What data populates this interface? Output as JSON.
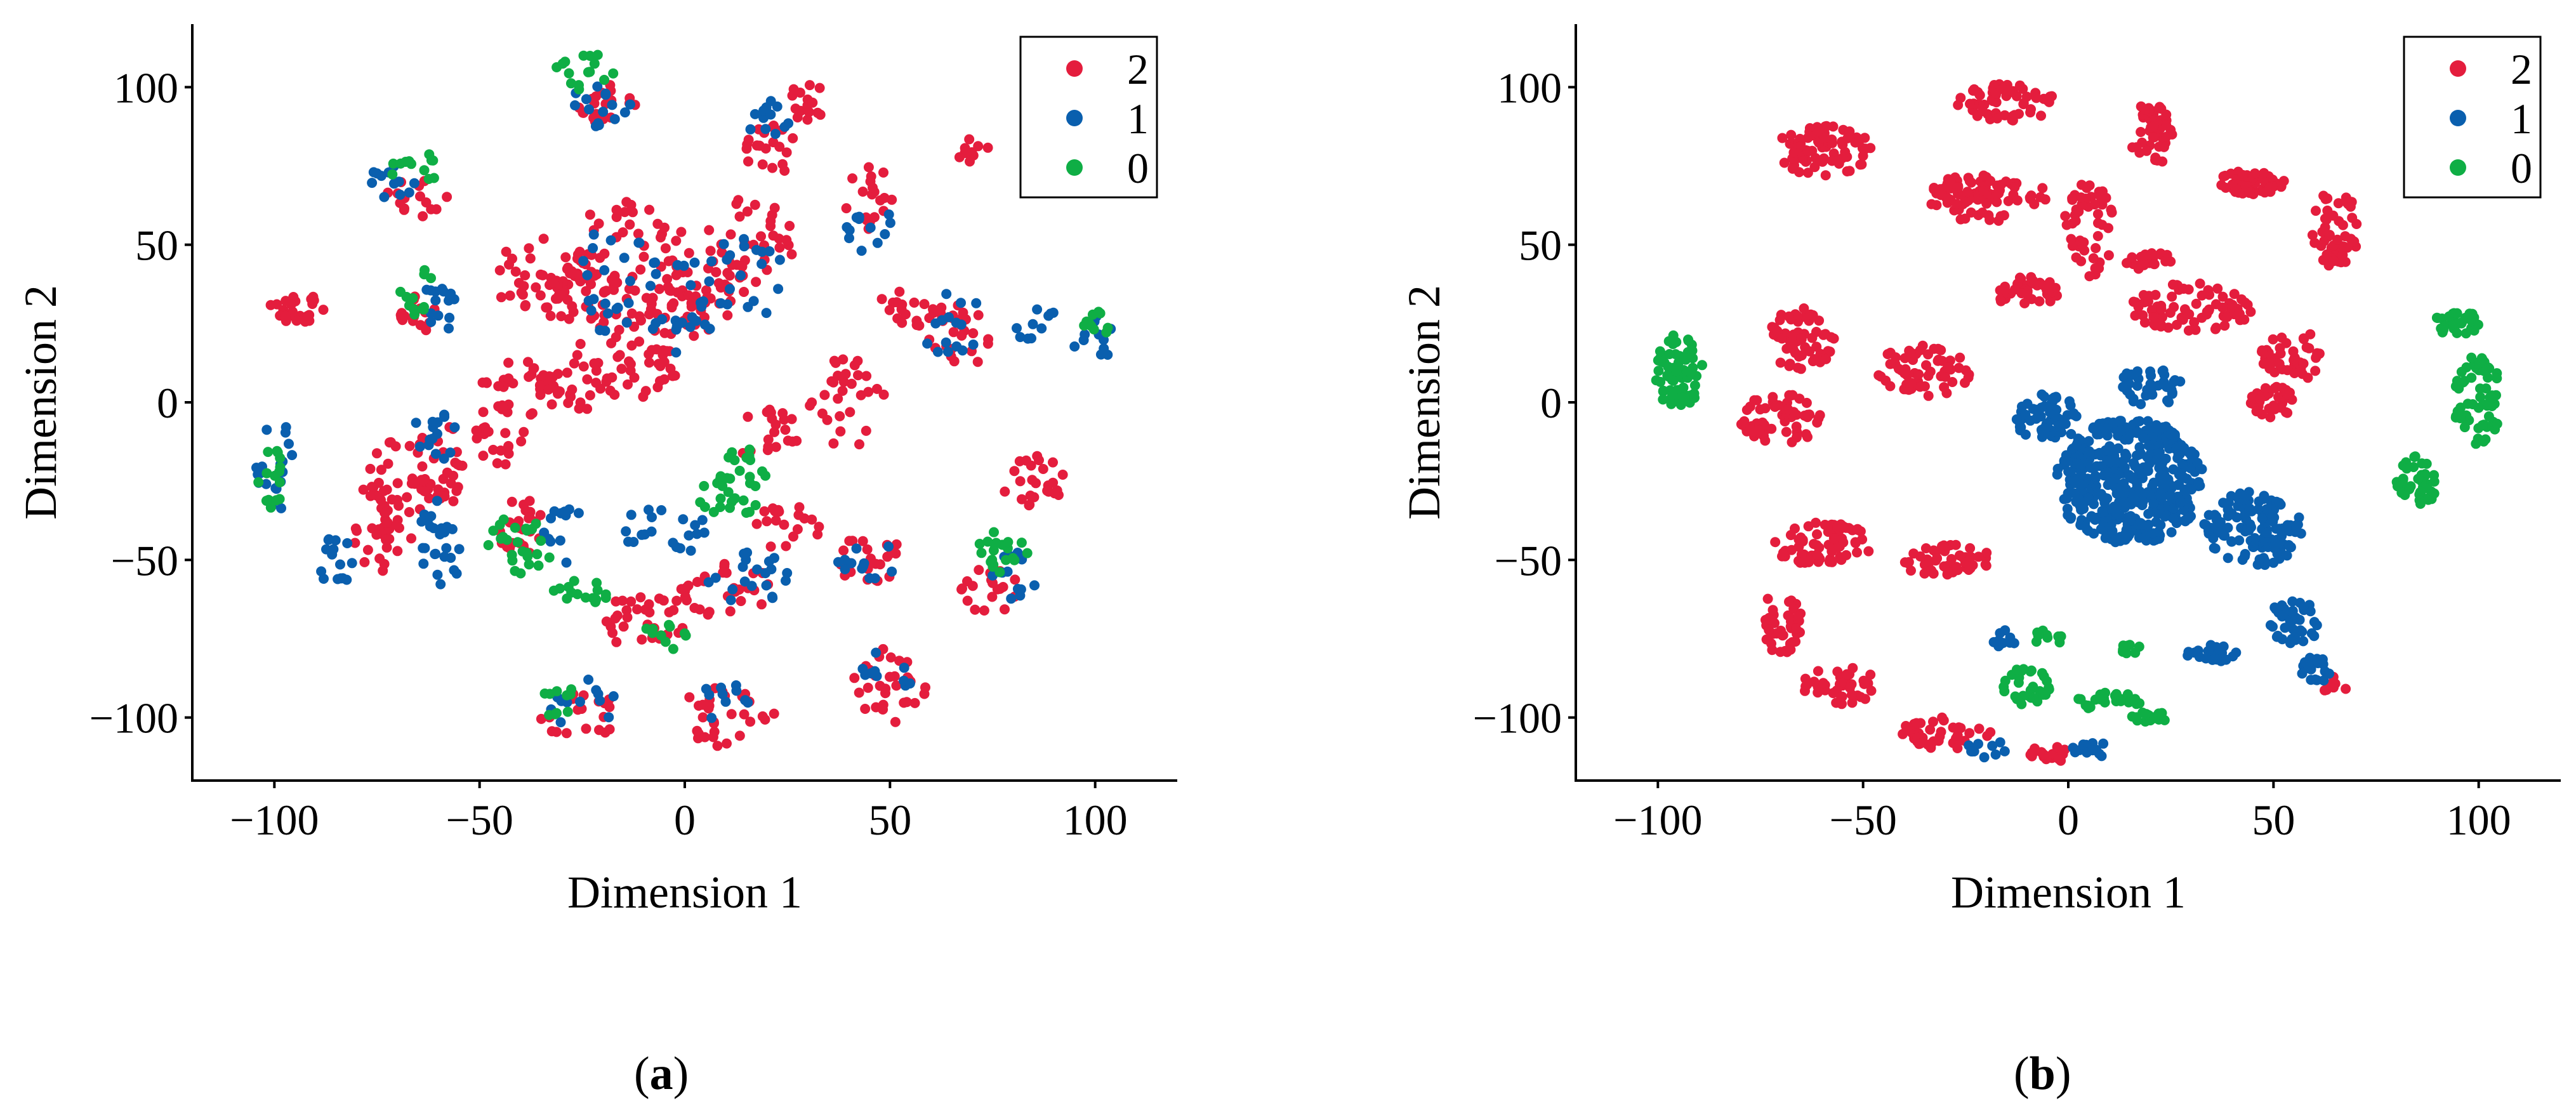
{
  "colors": {
    "class_2": "#e41d3d",
    "class_1": "#0a5fae",
    "class_0": "#0fae45"
  },
  "legend_labels": [
    "2",
    "1",
    "0"
  ],
  "captions": {
    "a": "a",
    "b": "b"
  },
  "chart_data": [
    {
      "type": "scatter",
      "panel": "a",
      "title": "",
      "xlabel": "Dimension 1",
      "ylabel": "Dimension 2",
      "xlim": [
        -120,
        120
      ],
      "ylim": [
        -120,
        120
      ],
      "xticks": [
        -100,
        -50,
        0,
        50,
        100
      ],
      "yticks": [
        -100,
        -50,
        0,
        50,
        100
      ],
      "xtick_labels": [
        "−100",
        "−50",
        "0",
        "50",
        "100"
      ],
      "ytick_labels": [
        "−100",
        "−50",
        "0",
        "50",
        "100"
      ],
      "legend": "top-right",
      "grid": false,
      "series": [
        {
          "name": "2",
          "color": "#e41d3d",
          "clusters": [
            [
              -95,
              30,
              7,
              5,
              25
            ],
            [
              -70,
              -30,
              8,
              18,
              40
            ],
            [
              -60,
              -20,
              6,
              15,
              30
            ],
            [
              -40,
              -40,
              6,
              10,
              25
            ],
            [
              -35,
              40,
              12,
              12,
              40
            ],
            [
              -25,
              30,
              10,
              18,
              40
            ],
            [
              -15,
              45,
              12,
              20,
              40
            ],
            [
              -5,
              30,
              10,
              15,
              35
            ],
            [
              5,
              40,
              10,
              18,
              40
            ],
            [
              15,
              50,
              12,
              15,
              35
            ],
            [
              -40,
              5,
              10,
              10,
              30
            ],
            [
              -25,
              5,
              12,
              8,
              30
            ],
            [
              -10,
              10,
              8,
              10,
              25
            ],
            [
              20,
              80,
              8,
              8,
              20
            ],
            [
              -20,
              95,
              8,
              8,
              20
            ],
            [
              30,
              95,
              6,
              6,
              15
            ],
            [
              45,
              65,
              6,
              10,
              20
            ],
            [
              65,
              20,
              10,
              12,
              30
            ],
            [
              -10,
              -70,
              12,
              10,
              30
            ],
            [
              10,
              -60,
              12,
              10,
              30
            ],
            [
              25,
              -40,
              8,
              8,
              20
            ],
            [
              45,
              -50,
              8,
              10,
              25
            ],
            [
              50,
              -90,
              10,
              12,
              30
            ],
            [
              10,
              -100,
              12,
              10,
              30
            ],
            [
              -25,
              -100,
              10,
              8,
              20
            ],
            [
              85,
              -25,
              8,
              8,
              25
            ],
            [
              75,
              -60,
              8,
              8,
              20
            ],
            [
              70,
              80,
              4,
              4,
              10
            ],
            [
              -65,
              65,
              8,
              6,
              15
            ],
            [
              -75,
              -40,
              6,
              15,
              25
            ],
            [
              -65,
              30,
              5,
              10,
              15
            ],
            [
              40,
              0,
              10,
              15,
              30
            ],
            [
              20,
              -10,
              8,
              10,
              20
            ],
            [
              -45,
              -10,
              6,
              10,
              20
            ],
            [
              55,
              30,
              8,
              6,
              15
            ]
          ]
        },
        {
          "name": "1",
          "color": "#0a5fae",
          "clusters": [
            [
              -100,
              -20,
              5,
              15,
              20
            ],
            [
              -85,
              -50,
              5,
              8,
              15
            ],
            [
              -60,
              -45,
              6,
              15,
              25
            ],
            [
              -60,
              30,
              5,
              8,
              15
            ],
            [
              -20,
              95,
              8,
              8,
              15
            ],
            [
              20,
              90,
              6,
              6,
              12
            ],
            [
              -15,
              40,
              12,
              20,
              25
            ],
            [
              0,
              30,
              10,
              15,
              20
            ],
            [
              15,
              40,
              10,
              15,
              20
            ],
            [
              45,
              55,
              6,
              10,
              12
            ],
            [
              -5,
              -40,
              10,
              10,
              20
            ],
            [
              15,
              -55,
              10,
              10,
              20
            ],
            [
              45,
              -50,
              8,
              10,
              12
            ],
            [
              -25,
              -95,
              10,
              8,
              12
            ],
            [
              80,
              -55,
              6,
              8,
              12
            ],
            [
              85,
              25,
              6,
              6,
              10
            ],
            [
              100,
              20,
              6,
              8,
              12
            ],
            [
              -70,
              70,
              8,
              6,
              12
            ],
            [
              -60,
              -10,
              8,
              10,
              15
            ],
            [
              65,
              25,
              8,
              10,
              15
            ],
            [
              -30,
              -40,
              6,
              12,
              12
            ],
            [
              50,
              -85,
              8,
              8,
              10
            ],
            [
              10,
              -95,
              8,
              6,
              10
            ]
          ]
        },
        {
          "name": "0",
          "color": "#0fae45",
          "clusters": [
            [
              -100,
              -25,
              5,
              10,
              15
            ],
            [
              -65,
              35,
              5,
              8,
              12
            ],
            [
              -40,
              -45,
              8,
              10,
              25
            ],
            [
              -25,
              -60,
              8,
              4,
              15
            ],
            [
              10,
              -30,
              10,
              6,
              20
            ],
            [
              15,
              -20,
              8,
              6,
              15
            ],
            [
              -25,
              105,
              8,
              6,
              15
            ],
            [
              -30,
              -95,
              6,
              5,
              10
            ],
            [
              80,
              -50,
              6,
              6,
              12
            ],
            [
              100,
              25,
              5,
              5,
              10
            ],
            [
              -65,
              75,
              8,
              5,
              12
            ],
            [
              -5,
              -75,
              6,
              5,
              10
            ],
            [
              75,
              -45,
              4,
              4,
              8
            ]
          ]
        }
      ]
    },
    {
      "type": "scatter",
      "panel": "b",
      "title": "",
      "xlabel": "Dimension 1",
      "ylabel": "Dimension 2",
      "xlim": [
        -120,
        120
      ],
      "ylim": [
        -120,
        120
      ],
      "xticks": [
        -100,
        -50,
        0,
        50,
        100
      ],
      "yticks": [
        -100,
        -50,
        0,
        50,
        100
      ],
      "xtick_labels": [
        "−100",
        "−50",
        "0",
        "50",
        "100"
      ],
      "ytick_labels": [
        "−100",
        "−50",
        "0",
        "50",
        "100"
      ],
      "legend": "top-right",
      "grid": false,
      "series": [
        {
          "name": "2",
          "color": "#e41d3d",
          "clusters": [
            [
              -60,
              80,
              12,
              8,
              80
            ],
            [
              -20,
              65,
              15,
              8,
              90
            ],
            [
              -15,
              95,
              12,
              6,
              60
            ],
            [
              20,
              85,
              6,
              10,
              45
            ],
            [
              5,
              55,
              6,
              15,
              50
            ],
            [
              45,
              70,
              8,
              4,
              50
            ],
            [
              65,
              55,
              6,
              12,
              50
            ],
            [
              30,
              30,
              15,
              8,
              80
            ],
            [
              55,
              15,
              8,
              8,
              40
            ],
            [
              50,
              0,
              6,
              5,
              35
            ],
            [
              -65,
              20,
              8,
              10,
              60
            ],
            [
              -70,
              -5,
              10,
              8,
              60
            ],
            [
              -35,
              10,
              12,
              8,
              60
            ],
            [
              -10,
              35,
              8,
              5,
              40
            ],
            [
              -60,
              -45,
              12,
              7,
              70
            ],
            [
              -30,
              -50,
              12,
              5,
              50
            ],
            [
              -70,
              -70,
              5,
              10,
              40
            ],
            [
              -55,
              -90,
              10,
              6,
              40
            ],
            [
              -30,
              -105,
              12,
              5,
              40
            ],
            [
              -5,
              -112,
              6,
              3,
              20
            ],
            [
              65,
              -90,
              3,
              3,
              8
            ],
            [
              20,
              45,
              6,
              3,
              20
            ]
          ]
        },
        {
          "name": "1",
          "color": "#0a5fae",
          "clusters": [
            [
              15,
              -25,
              18,
              20,
              450
            ],
            [
              -5,
              -5,
              8,
              8,
              60
            ],
            [
              45,
              -40,
              12,
              12,
              120
            ],
            [
              55,
              -70,
              6,
              8,
              40
            ],
            [
              60,
              -85,
              4,
              5,
              20
            ],
            [
              35,
              -80,
              6,
              3,
              20
            ],
            [
              5,
              -110,
              6,
              3,
              12
            ],
            [
              -20,
              -110,
              5,
              3,
              10
            ],
            [
              -15,
              -75,
              4,
              3,
              10
            ],
            [
              20,
              5,
              8,
              6,
              40
            ]
          ]
        },
        {
          "name": "0",
          "color": "#0fae45",
          "clusters": [
            [
              -95,
              10,
              6,
              12,
              80
            ],
            [
              100,
              0,
              6,
              15,
              60
            ],
            [
              95,
              25,
              6,
              4,
              30
            ],
            [
              85,
              -25,
              5,
              8,
              40
            ],
            [
              -10,
              -90,
              6,
              6,
              30
            ],
            [
              10,
              -95,
              8,
              3,
              25
            ],
            [
              20,
              -100,
              5,
              2,
              15
            ],
            [
              15,
              -78,
              3,
              2,
              8
            ],
            [
              -5,
              -75,
              4,
              3,
              10
            ]
          ]
        }
      ]
    }
  ]
}
